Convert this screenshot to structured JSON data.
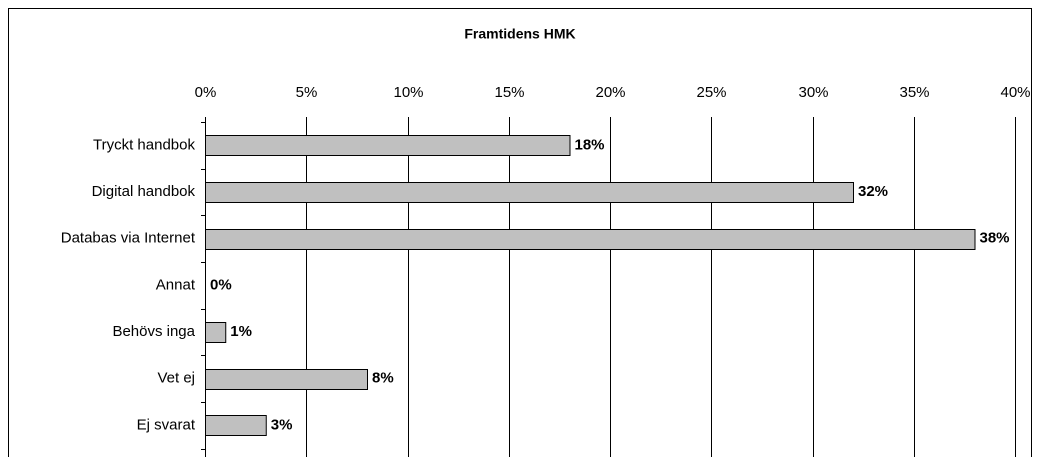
{
  "chart_data": {
    "type": "barh",
    "title": "Framtidens HMK",
    "categories": [
      "Tryckt handbok",
      "Digital handbok",
      "Databas via Internet",
      "Annat",
      "Behövs inga",
      "Vet ej",
      "Ej svarat"
    ],
    "values": [
      18,
      32,
      38,
      0,
      1,
      8,
      3
    ],
    "value_labels": [
      "18%",
      "32%",
      "38%",
      "0%",
      "1%",
      "8%",
      "3%"
    ],
    "color": "#c0c0c0",
    "xlim": [
      0,
      40
    ],
    "xticks": [
      {
        "value": 0,
        "label": "0%"
      },
      {
        "value": 5,
        "label": "5%"
      },
      {
        "value": 10,
        "label": "10%"
      },
      {
        "value": 15,
        "label": "15%"
      },
      {
        "value": 20,
        "label": "20%"
      },
      {
        "value": 25,
        "label": "25%"
      },
      {
        "value": 30,
        "label": "30%"
      },
      {
        "value": 35,
        "label": "35%"
      },
      {
        "value": 40,
        "label": "40%"
      }
    ],
    "grid": true
  }
}
